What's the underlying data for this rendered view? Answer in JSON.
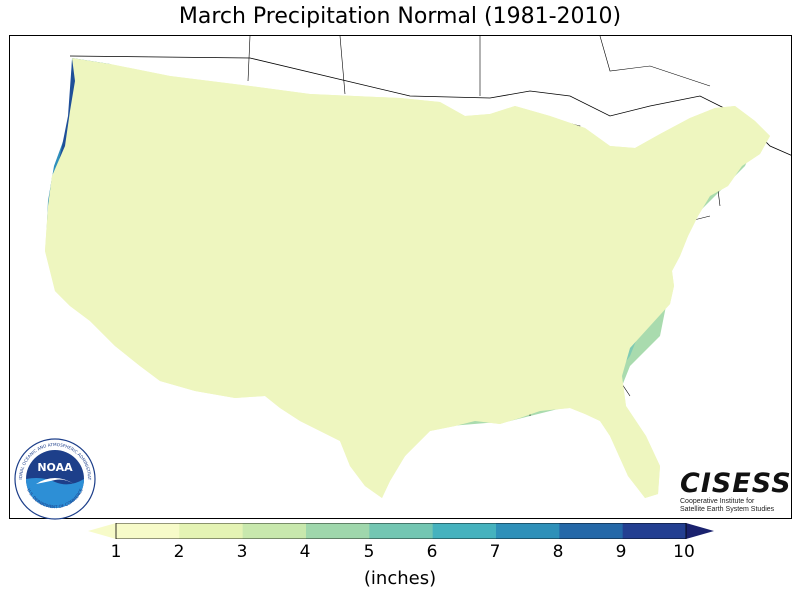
{
  "title": "March Precipitation Normal (1981-2010)",
  "colorbar": {
    "ticks": [
      "1",
      "2",
      "3",
      "4",
      "5",
      "6",
      "7",
      "8",
      "9",
      "10"
    ],
    "unit": "(inches)",
    "colors": [
      "#f7fbc9",
      "#e4f3b4",
      "#c8e8ad",
      "#9fd7ac",
      "#73c6b2",
      "#45b2be",
      "#2e90b9",
      "#2468a8",
      "#233f91",
      "#1a226e"
    ]
  },
  "logos": {
    "noaa": "NOAA",
    "noaa_ring_top": "NATIONAL OCEANIC AND ATMOSPHERIC ADMINISTRATION",
    "noaa_ring_bottom": "U.S. DEPARTMENT OF COMMERCE",
    "cisess_name": "CISESS",
    "cisess_line1": "Cooperative Institute for",
    "cisess_line2": "Satellite Earth System Studies"
  },
  "map": {
    "palette": {
      "water": "#ffffff",
      "border": "#000000",
      "dry": "#fdfdd8",
      "low": "#eef6bf",
      "midlow": "#d6ecb0",
      "mid": "#a9dbae",
      "midhigh": "#7fcbb4",
      "high": "#4fb6bf",
      "veryhigh": "#2f8fbc",
      "extreme": "#1f4f98"
    }
  }
}
